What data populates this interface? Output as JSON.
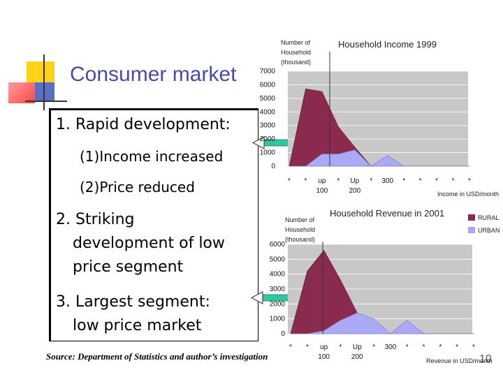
{
  "slide": {
    "title": "Consumer market",
    "page_number": "10",
    "source": "Source: Department of Statistics and author’s investigation",
    "points": {
      "p1": "1. Rapid development:",
      "p1a": "(1)Income increased",
      "p1b": "(2)Price reduced",
      "p2_line1": "2. Striking",
      "p2_line2": "development of low",
      "p2_line3": "price segment",
      "p3_line1": "3. Largest segment:",
      "p3_line2": "low price market"
    }
  },
  "colors": {
    "rural": "#8b2a4f",
    "urban": "#a9a9f5",
    "plot_bg": "#c8c8c8",
    "arrow": "#2ec8a0"
  },
  "chart_data": [
    {
      "type": "area",
      "title": "Household Income 1999",
      "ylabel": "Number of Household (thousand)",
      "xlabel": "Income in USD/month",
      "ylim": [
        0,
        7000
      ],
      "yticks": [
        "7000",
        "6000",
        "5000",
        "4000",
        "3000",
        "2000",
        "1000",
        "0"
      ],
      "categories": [
        "*",
        "*",
        "up 100",
        "*",
        "Up 200",
        "*",
        "300",
        "*",
        "*",
        "*",
        "*",
        "*"
      ],
      "series": [
        {
          "values": [
            0,
            5700,
            5500,
            2900,
            1400,
            0,
            0,
            0,
            0,
            0,
            0,
            0
          ]
        },
        {
          "values": [
            0,
            0,
            900,
            900,
            1200,
            0,
            800,
            0,
            0,
            0,
            0,
            0
          ]
        }
      ]
    },
    {
      "type": "area",
      "title": "Household Revenue in 2001",
      "ylabel": "Number of Household (thousand)",
      "xlabel": "Revenue in USD/month",
      "ylim": [
        0,
        6000
      ],
      "yticks": [
        "6000",
        "5000",
        "4000",
        "3000",
        "2000",
        "1000",
        "0"
      ],
      "categories": [
        "*",
        "*",
        "up 100",
        "*",
        "Up 200",
        "*",
        "300",
        "*",
        "*",
        "*",
        "*",
        "*"
      ],
      "legend": [
        "RURAL",
        "URBAN"
      ],
      "series": [
        {
          "name": "RURAL",
          "values": [
            0,
            4200,
            5600,
            3600,
            1400,
            0,
            0,
            0,
            0,
            0,
            0,
            0
          ]
        },
        {
          "name": "URBAN",
          "values": [
            0,
            0,
            200,
            900,
            1400,
            1000,
            0,
            900,
            0,
            0,
            0,
            0
          ]
        }
      ]
    }
  ]
}
